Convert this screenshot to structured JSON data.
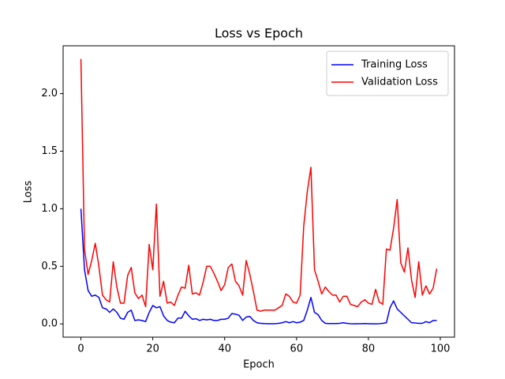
{
  "chart_data": {
    "type": "line",
    "title": "Loss vs Epoch",
    "x_label": "Epoch",
    "y_label": "Loss",
    "x": [
      0,
      1,
      2,
      3,
      4,
      5,
      6,
      7,
      8,
      9,
      10,
      11,
      12,
      13,
      14,
      15,
      16,
      17,
      18,
      19,
      20,
      21,
      22,
      23,
      24,
      25,
      26,
      27,
      28,
      29,
      30,
      31,
      32,
      33,
      34,
      35,
      36,
      37,
      38,
      39,
      40,
      41,
      42,
      43,
      44,
      45,
      46,
      47,
      48,
      49,
      50,
      51,
      52,
      53,
      54,
      55,
      56,
      57,
      58,
      59,
      60,
      61,
      62,
      63,
      64,
      65,
      66,
      67,
      68,
      69,
      70,
      71,
      72,
      73,
      74,
      75,
      76,
      77,
      78,
      79,
      80,
      81,
      82,
      83,
      84,
      85,
      86,
      87,
      88,
      89,
      90,
      91,
      92,
      93,
      94,
      95,
      96,
      97,
      98,
      99
    ],
    "series": [
      {
        "name": "Training Loss",
        "color": "#0000ff",
        "values": [
          1.0,
          0.47,
          0.29,
          0.24,
          0.25,
          0.23,
          0.14,
          0.13,
          0.1,
          0.13,
          0.1,
          0.05,
          0.04,
          0.1,
          0.12,
          0.03,
          0.035,
          0.03,
          0.02,
          0.1,
          0.16,
          0.14,
          0.15,
          0.07,
          0.03,
          0.015,
          0.01,
          0.05,
          0.05,
          0.11,
          0.07,
          0.04,
          0.045,
          0.03,
          0.04,
          0.035,
          0.04,
          0.03,
          0.03,
          0.04,
          0.04,
          0.05,
          0.09,
          0.085,
          0.075,
          0.03,
          0.06,
          0.065,
          0.03,
          0.01,
          0.005,
          0.003,
          0.002,
          0.002,
          0.002,
          0.005,
          0.01,
          0.02,
          0.01,
          0.02,
          0.01,
          0.015,
          0.03,
          0.12,
          0.23,
          0.1,
          0.08,
          0.03,
          0.005,
          0.003,
          0.003,
          0.003,
          0.005,
          0.01,
          0.005,
          0.002,
          0.001,
          0.002,
          0.002,
          0.003,
          0.002,
          0.001,
          0.001,
          0.002,
          0.005,
          0.01,
          0.14,
          0.2,
          0.13,
          0.1,
          0.07,
          0.04,
          0.01,
          0.008,
          0.005,
          0.005,
          0.02,
          0.01,
          0.03,
          0.03
        ]
      },
      {
        "name": "Validation Loss",
        "color": "#ff0000",
        "values": [
          2.3,
          0.65,
          0.43,
          0.55,
          0.7,
          0.5,
          0.25,
          0.21,
          0.19,
          0.54,
          0.32,
          0.18,
          0.18,
          0.42,
          0.49,
          0.27,
          0.22,
          0.25,
          0.15,
          0.69,
          0.47,
          1.04,
          0.24,
          0.37,
          0.18,
          0.19,
          0.16,
          0.25,
          0.32,
          0.31,
          0.51,
          0.26,
          0.27,
          0.25,
          0.36,
          0.5,
          0.5,
          0.44,
          0.37,
          0.29,
          0.34,
          0.49,
          0.52,
          0.37,
          0.33,
          0.25,
          0.55,
          0.43,
          0.28,
          0.12,
          0.11,
          0.12,
          0.12,
          0.12,
          0.12,
          0.14,
          0.16,
          0.26,
          0.24,
          0.19,
          0.18,
          0.25,
          0.85,
          1.15,
          1.36,
          0.47,
          0.37,
          0.26,
          0.32,
          0.28,
          0.25,
          0.25,
          0.19,
          0.24,
          0.24,
          0.17,
          0.16,
          0.15,
          0.19,
          0.21,
          0.18,
          0.17,
          0.3,
          0.19,
          0.17,
          0.65,
          0.64,
          0.83,
          1.08,
          0.53,
          0.45,
          0.66,
          0.38,
          0.23,
          0.54,
          0.25,
          0.33,
          0.26,
          0.31,
          0.48
        ]
      }
    ],
    "xlim": [
      -4.95,
      103.95
    ],
    "ylim": [
      -0.115,
      2.415
    ],
    "xticks": [
      0,
      20,
      40,
      60,
      80,
      100
    ],
    "yticks": [
      {
        "value": 0,
        "label": "0.0"
      },
      {
        "value": 0.5,
        "label": "0.5"
      },
      {
        "value": 1,
        "label": "1.0"
      },
      {
        "value": 1.5,
        "label": "1.5"
      },
      {
        "value": 2,
        "label": "2.0"
      }
    ],
    "legend": "upper right",
    "grid": false
  }
}
